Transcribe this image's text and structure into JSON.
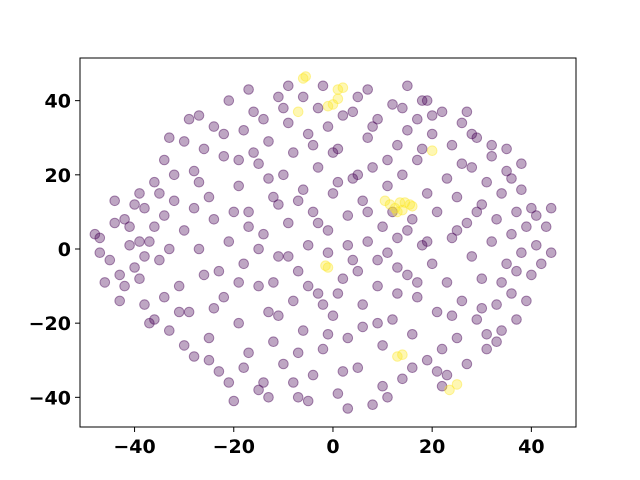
{
  "chart_data": {
    "type": "scatter",
    "title": "",
    "xlabel": "",
    "ylabel": "",
    "xlim": [
      -51,
      49
    ],
    "ylim": [
      -48,
      51.5
    ],
    "grid": false,
    "legend": "none",
    "x_ticks": [
      -40,
      -20,
      0,
      20,
      40
    ],
    "y_ticks": [
      -40,
      -20,
      0,
      20,
      40
    ],
    "x_tick_labels": [
      "−40",
      "−20",
      "0",
      "20",
      "40"
    ],
    "y_tick_labels": [
      "−40",
      "−20",
      "0",
      "20",
      "40"
    ],
    "colors": {
      "cluster_a": "#440154",
      "cluster_b": "#fde725"
    },
    "point_alpha": 0.35,
    "series": [
      {
        "color_key": "cluster_b",
        "points": [
          [
            -6,
            46
          ],
          [
            -5.5,
            46.5
          ],
          [
            -1,
            38.5
          ],
          [
            0,
            39
          ],
          [
            1,
            43
          ],
          [
            2,
            43.5
          ],
          [
            1,
            40.5
          ],
          [
            -7,
            37
          ],
          [
            10.5,
            13
          ],
          [
            11.5,
            12
          ],
          [
            12.5,
            11
          ],
          [
            13.5,
            12.5
          ],
          [
            14,
            10.5
          ],
          [
            14.5,
            12.5
          ],
          [
            15.5,
            12
          ],
          [
            13,
            10
          ],
          [
            16,
            11.5
          ],
          [
            20,
            26.5
          ],
          [
            -1.5,
            -4.5
          ],
          [
            -1,
            -5
          ],
          [
            13,
            -29
          ],
          [
            14,
            -28.5
          ],
          [
            23.5,
            -38
          ],
          [
            25,
            -36.5
          ]
        ]
      },
      {
        "color_key": "cluster_a",
        "points": [
          [
            -48,
            4
          ],
          [
            -47,
            3
          ],
          [
            -45,
            -3
          ],
          [
            -44,
            13
          ],
          [
            -43,
            -14
          ],
          [
            -42,
            8
          ],
          [
            -41,
            6
          ],
          [
            -41,
            1
          ],
          [
            -40,
            -5
          ],
          [
            -39,
            15
          ],
          [
            -39,
            -8
          ],
          [
            -38,
            11
          ],
          [
            -38,
            -15
          ],
          [
            -37,
            2
          ],
          [
            -36,
            18
          ],
          [
            -36,
            -19
          ],
          [
            -35,
            -3
          ],
          [
            -34,
            9
          ],
          [
            -34,
            24
          ],
          [
            -33,
            -22
          ],
          [
            -33,
            0
          ],
          [
            -32,
            13
          ],
          [
            -31,
            -10
          ],
          [
            -30,
            29
          ],
          [
            -30,
            5
          ],
          [
            -29,
            -17
          ],
          [
            -28,
            21
          ],
          [
            -28,
            -29
          ],
          [
            -27,
            36
          ],
          [
            -27,
            0
          ],
          [
            -26,
            -7
          ],
          [
            -25,
            14
          ],
          [
            -25,
            -24
          ],
          [
            -24,
            33
          ],
          [
            -24,
            8
          ],
          [
            -23,
            -33
          ],
          [
            -22,
            25
          ],
          [
            -22,
            -13
          ],
          [
            -21,
            40
          ],
          [
            -21,
            2
          ],
          [
            -20,
            -41
          ],
          [
            -19,
            17
          ],
          [
            -19,
            -20
          ],
          [
            -18,
            32
          ],
          [
            -18,
            -4
          ],
          [
            -17,
            10
          ],
          [
            -17,
            -28
          ],
          [
            -16,
            37
          ],
          [
            -15,
            23
          ],
          [
            -15,
            -10
          ],
          [
            -14,
            -36
          ],
          [
            -14,
            4
          ],
          [
            -13,
            29
          ],
          [
            -13,
            -17
          ],
          [
            -12,
            14
          ],
          [
            -12,
            -25
          ],
          [
            -11,
            41
          ],
          [
            -11,
            -2
          ],
          [
            -10,
            20
          ],
          [
            -10,
            -31
          ],
          [
            -9,
            34
          ],
          [
            -9,
            7
          ],
          [
            -8,
            -14
          ],
          [
            -8,
            26
          ],
          [
            -7,
            -40
          ],
          [
            -7,
            -6
          ],
          [
            -6,
            16
          ],
          [
            -6,
            -22
          ],
          [
            -5,
            31
          ],
          [
            -5,
            1
          ],
          [
            -4,
            -34
          ],
          [
            -4,
            10
          ],
          [
            -3,
            22
          ],
          [
            -3,
            -12
          ],
          [
            -2,
            44
          ],
          [
            -2,
            -27
          ],
          [
            -1,
            5
          ],
          [
            -1,
            33
          ],
          [
            0,
            -18
          ],
          [
            0,
            15
          ],
          [
            1,
            -39
          ],
          [
            1,
            27
          ],
          [
            2,
            -8
          ],
          [
            2,
            36
          ],
          [
            3,
            9
          ],
          [
            3,
            -24
          ],
          [
            4,
            19
          ],
          [
            4,
            -3
          ],
          [
            5,
            41
          ],
          [
            5,
            -32
          ],
          [
            6,
            13
          ],
          [
            6,
            -15
          ],
          [
            7,
            30
          ],
          [
            7,
            2
          ],
          [
            8,
            -42
          ],
          [
            8,
            22
          ],
          [
            9,
            -10
          ],
          [
            9,
            35
          ],
          [
            10,
            6
          ],
          [
            10,
            -26
          ],
          [
            11,
            17
          ],
          [
            11,
            -1
          ],
          [
            12,
            39
          ],
          [
            12,
            -19
          ],
          [
            13,
            28
          ],
          [
            13,
            3
          ],
          [
            14,
            -35
          ],
          [
            14,
            20
          ],
          [
            15,
            -7
          ],
          [
            15,
            32
          ],
          [
            16,
            8
          ],
          [
            16,
            -23
          ],
          [
            17,
            24
          ],
          [
            17,
            -13
          ],
          [
            18,
            40
          ],
          [
            18,
            1
          ],
          [
            19,
            -30
          ],
          [
            19,
            15
          ],
          [
            20,
            -4
          ],
          [
            20,
            31
          ],
          [
            21,
            -17
          ],
          [
            21,
            10
          ],
          [
            22,
            37
          ],
          [
            22,
            -37
          ],
          [
            23,
            19
          ],
          [
            23,
            -9
          ],
          [
            24,
            28
          ],
          [
            24,
            3
          ],
          [
            25,
            -24
          ],
          [
            25,
            14
          ],
          [
            26,
            -14
          ],
          [
            26,
            34
          ],
          [
            27,
            7
          ],
          [
            27,
            -31
          ],
          [
            28,
            22
          ],
          [
            28,
            -2
          ],
          [
            29,
            -19
          ],
          [
            29,
            30
          ],
          [
            30,
            12
          ],
          [
            30,
            -8
          ],
          [
            31,
            -27
          ],
          [
            31,
            18
          ],
          [
            32,
            2
          ],
          [
            32,
            25
          ],
          [
            33,
            -15
          ],
          [
            33,
            8
          ],
          [
            34,
            -22
          ],
          [
            34,
            15
          ],
          [
            35,
            -4
          ],
          [
            35,
            21
          ],
          [
            36,
            4
          ],
          [
            36,
            -12
          ],
          [
            37,
            10
          ],
          [
            37,
            -19
          ],
          [
            38,
            -1
          ],
          [
            38,
            16
          ],
          [
            39,
            6
          ],
          [
            39,
            -14
          ],
          [
            40,
            11
          ],
          [
            40,
            -7
          ],
          [
            41,
            1
          ],
          [
            42,
            -4
          ],
          [
            43,
            6
          ],
          [
            44,
            11
          ],
          [
            44,
            -1
          ],
          [
            -46,
            -9
          ],
          [
            -44,
            7
          ],
          [
            -42,
            -10
          ],
          [
            -40,
            12
          ],
          [
            -38,
            -2
          ],
          [
            -36,
            6
          ],
          [
            -34,
            -13
          ],
          [
            -32,
            20
          ],
          [
            -30,
            -26
          ],
          [
            -28,
            11
          ],
          [
            -26,
            27
          ],
          [
            -24,
            -16
          ],
          [
            -22,
            31
          ],
          [
            -20,
            10
          ],
          [
            -18,
            -32
          ],
          [
            -16,
            26
          ],
          [
            -14,
            35
          ],
          [
            -12,
            -9
          ],
          [
            -10,
            38
          ],
          [
            -8,
            -36
          ],
          [
            -6,
            41
          ],
          [
            -4,
            28
          ],
          [
            -2,
            -15
          ],
          [
            0,
            26
          ],
          [
            2,
            -33
          ],
          [
            4,
            37
          ],
          [
            6,
            -21
          ],
          [
            8,
            33
          ],
          [
            10,
            -37
          ],
          [
            12,
            10
          ],
          [
            14,
            38
          ],
          [
            16,
            -32
          ],
          [
            18,
            27
          ],
          [
            20,
            36
          ],
          [
            22,
            -27
          ],
          [
            24,
            -18
          ],
          [
            26,
            23
          ],
          [
            28,
            31
          ],
          [
            30,
            -16
          ],
          [
            32,
            28
          ],
          [
            34,
            -9
          ],
          [
            36,
            19
          ],
          [
            38,
            23
          ],
          [
            -47,
            -1
          ],
          [
            -43,
            -7
          ],
          [
            -39,
            2
          ],
          [
            -35,
            15
          ],
          [
            -31,
            -17
          ],
          [
            -27,
            18
          ],
          [
            -23,
            -6
          ],
          [
            -19,
            24
          ],
          [
            -15,
            -38
          ],
          [
            -11,
            12
          ],
          [
            -7,
            -28
          ],
          [
            -3,
            38
          ],
          [
            1,
            -12
          ],
          [
            5,
            20
          ],
          [
            9,
            -20
          ],
          [
            13,
            -12
          ],
          [
            17,
            35
          ],
          [
            21,
            -33
          ],
          [
            25,
            5
          ],
          [
            29,
            10
          ],
          [
            33,
            -25
          ],
          [
            37,
            -6
          ],
          [
            41,
            9
          ],
          [
            -29,
            35
          ],
          [
            -25,
            -30
          ],
          [
            -21,
            -36
          ],
          [
            -17,
            43
          ],
          [
            -13,
            -40
          ],
          [
            -9,
            44
          ],
          [
            -5,
            -41
          ],
          [
            3,
            -43
          ],
          [
            7,
            43
          ],
          [
            11,
            -40
          ],
          [
            15,
            44
          ],
          [
            19,
            40
          ],
          [
            23,
            -34
          ],
          [
            27,
            37
          ],
          [
            31,
            -23
          ],
          [
            35,
            27
          ],
          [
            -37,
            -20
          ],
          [
            -33,
            30
          ],
          [
            -1,
            -23
          ],
          [
            3,
            1
          ],
          [
            -3,
            7
          ],
          [
            5,
            -6
          ],
          [
            -5,
            -10
          ],
          [
            7,
            10
          ],
          [
            -7,
            13
          ],
          [
            9,
            -3
          ],
          [
            -9,
            -2
          ],
          [
            1,
            18
          ],
          [
            -1,
            -1
          ],
          [
            11,
            24
          ],
          [
            -11,
            -18
          ],
          [
            13,
            -5
          ],
          [
            -13,
            19
          ],
          [
            15,
            5
          ],
          [
            -15,
            0
          ],
          [
            17,
            -9
          ],
          [
            -17,
            6
          ],
          [
            19,
            2
          ],
          [
            -19,
            -9
          ]
        ]
      }
    ]
  }
}
